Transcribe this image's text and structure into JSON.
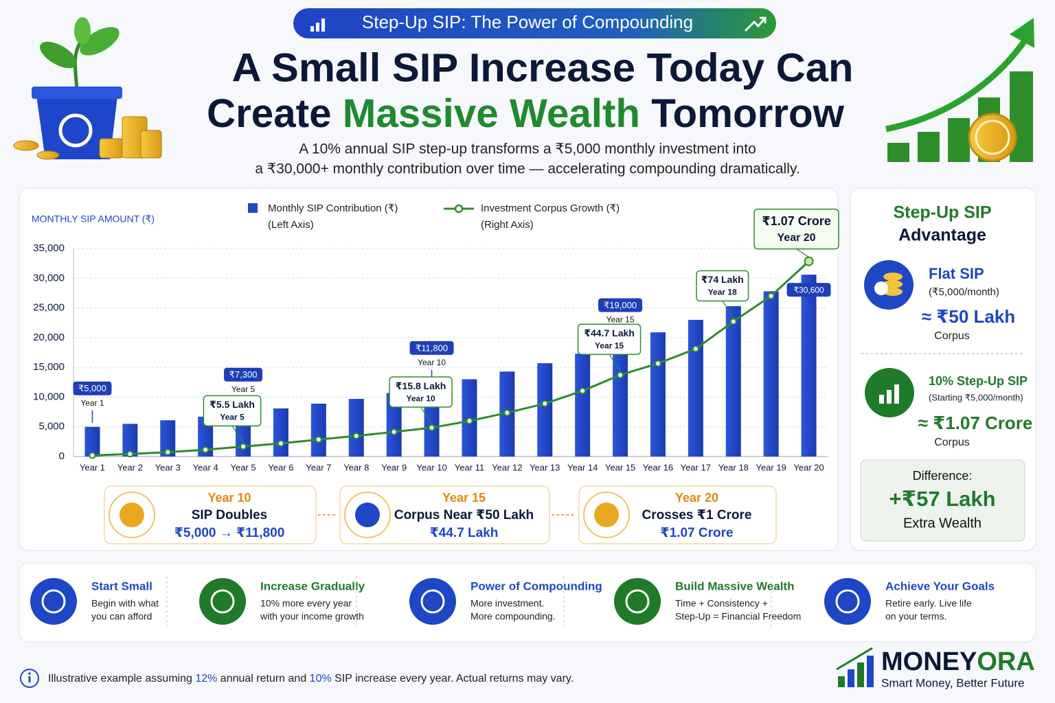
{
  "header": {
    "badge": "Step-Up SIP: The Power of Compounding",
    "title_line1": "A Small SIP Increase Today Can",
    "title_line2": [
      "Create ",
      "Massive Wealth",
      " Tomorrow"
    ],
    "subtitle": [
      "A 10% annual SIP step-up transforms a ₹5,000 monthly investment into",
      "a ₹30,000+ monthly contribution over time — accelerating compounding dramatically."
    ]
  },
  "chart_data": {
    "type": "bar",
    "y_axis_label": "MONTHLY SIP AMOUNT (₹)",
    "categories": [
      "Year 1",
      "Year 2",
      "Year 3",
      "Year 4",
      "Year 5",
      "Year 6",
      "Year 7",
      "Year 8",
      "Year 9",
      "Year 10",
      "Year 11",
      "Year 12",
      "Year 13",
      "Year 14",
      "Year 15",
      "Year 16",
      "Year 17",
      "Year 18",
      "Year 19",
      "Year 20"
    ],
    "series": [
      {
        "name": "Monthly SIP Contribution (₹)",
        "axis_note": "(Left Axis)",
        "type": "bar",
        "color": "#2147c9",
        "values": [
          5000,
          5500,
          6100,
          6700,
          7300,
          8100,
          8900,
          9700,
          10700,
          11800,
          13000,
          14300,
          15700,
          17300,
          19000,
          20900,
          23000,
          25300,
          27800,
          30600
        ],
        "value_labels": [
          "₹5,000",
          null,
          null,
          null,
          "₹7,300",
          null,
          null,
          null,
          null,
          "₹11,800",
          null,
          null,
          null,
          null,
          "₹19,000",
          null,
          null,
          null,
          null,
          "₹30,600"
        ]
      },
      {
        "name": "Investment Corpus Growth (₹)",
        "axis_note": "(Right Axis)",
        "type": "line",
        "axis": "y2",
        "color": "#2e8b2e",
        "values": [
          60000,
          140000,
          240000,
          370000,
          550000,
          720000,
          930000,
          1130000,
          1350000,
          1580000,
          1950000,
          2400000,
          2900000,
          3600000,
          4470000,
          5100000,
          5900000,
          7400000,
          8800000,
          10700000
        ],
        "value_labels": [
          null,
          null,
          null,
          null,
          "₹5.5 Lakh",
          null,
          null,
          null,
          null,
          "₹15.8 Lakh",
          null,
          null,
          null,
          null,
          "₹44.7 Lakh",
          null,
          null,
          "₹74 Lakh",
          null,
          "₹1.07 Crore"
        ]
      }
    ],
    "ylim": [
      0,
      35000
    ],
    "yticks": [
      0,
      {
        "value": 5000,
        "label": "5,000"
      },
      {
        "value": 10000,
        "label": "10,000"
      },
      {
        "value": 15000,
        "label": "15,000"
      },
      {
        "value": 20000,
        "label": "20,000"
      },
      {
        "value": 25000,
        "label": "25,000"
      },
      {
        "value": 30000,
        "label": "30,000"
      },
      {
        "value": 35000,
        "label": "35,000"
      }
    ],
    "y2lim": [
      0,
      11400000
    ],
    "grid": true
  },
  "milestones": [
    {
      "year": "Year 10",
      "title": "SIP Doubles",
      "detail": "₹5,000 → ₹11,800"
    },
    {
      "year": "Year 15",
      "title": "Corpus Near ₹50 Lakh",
      "detail": "₹44.7 Lakh"
    },
    {
      "year": "Year 20",
      "title": "Crosses ₹1 Crore",
      "detail": "₹1.07 Crore"
    }
  ],
  "advantage": {
    "title": [
      "Step-Up SIP",
      "Advantage"
    ],
    "flat": {
      "name": "Flat SIP",
      "note": "(₹5,000/month)",
      "value": "≈ ₹50 Lakh",
      "unit": "Corpus"
    },
    "stepup": {
      "name": "10% Step-Up SIP",
      "note": "(Starting ₹5,000/month)",
      "value": "≈ ₹1.07 Crore",
      "unit": "Corpus"
    },
    "difference": {
      "label": "Difference:",
      "value": "+₹57 Lakh",
      "note": "Extra Wealth"
    }
  },
  "features": [
    {
      "title": "Start Small",
      "lines": [
        "Begin with what",
        "you can afford"
      ]
    },
    {
      "title": "Increase Gradually",
      "lines": [
        "10% more every year",
        "with your income growth"
      ]
    },
    {
      "title": "Power of Compounding",
      "lines": [
        "More investment.",
        "More compounding."
      ]
    },
    {
      "title": "Build Massive Wealth",
      "lines": [
        "Time + Consistency +",
        "Step-Up = Financial Freedom"
      ]
    },
    {
      "title": "Achieve Your Goals",
      "lines": [
        "Retire early. Live life",
        "on your terms."
      ]
    }
  ],
  "footer": {
    "note": [
      "Illustrative example assuming ",
      "12%",
      " annual return and ",
      "10%",
      " SIP increase every year. Actual returns may vary."
    ]
  },
  "brand": {
    "name": [
      "MONEY",
      "ORA"
    ],
    "tagline": "Smart Money, Better Future"
  }
}
